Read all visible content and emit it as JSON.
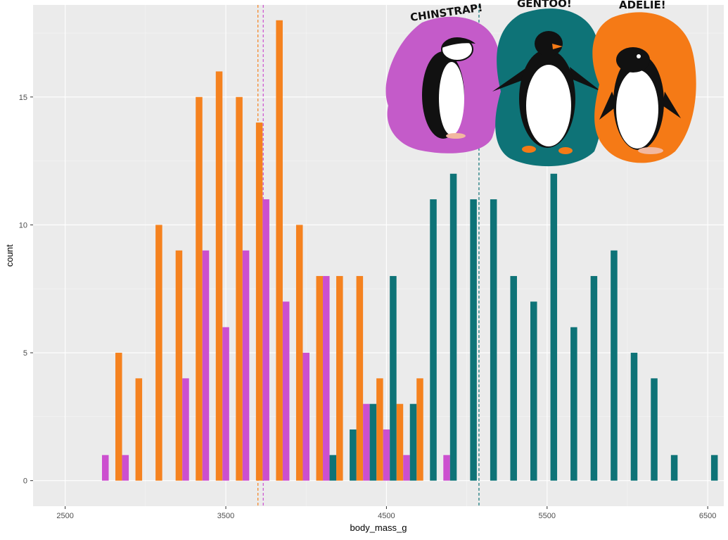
{
  "chart_data": {
    "type": "bar",
    "xlabel": "body_mass_g",
    "ylabel": "count",
    "xlim": [
      2500,
      6500
    ],
    "ylim": [
      -1.0,
      18.6
    ],
    "x_ticks": [
      2500,
      3500,
      4500,
      5500,
      6500
    ],
    "y_ticks": [
      0,
      5,
      10,
      15
    ],
    "grid": true,
    "legend": "none",
    "bin_width": 125,
    "series": [
      {
        "color": "#F5821F",
        "bins": [
          {
            "x": 2875,
            "count": 5
          },
          {
            "x": 3000,
            "count": 4
          },
          {
            "x": 3125,
            "count": 10
          },
          {
            "x": 3250,
            "count": 9
          },
          {
            "x": 3375,
            "count": 15
          },
          {
            "x": 3500,
            "count": 16
          },
          {
            "x": 3625,
            "count": 15
          },
          {
            "x": 3750,
            "count": 14
          },
          {
            "x": 3875,
            "count": 18
          },
          {
            "x": 4000,
            "count": 10
          },
          {
            "x": 4125,
            "count": 8
          },
          {
            "x": 4250,
            "count": 8
          },
          {
            "x": 4375,
            "count": 8
          },
          {
            "x": 4500,
            "count": 4
          },
          {
            "x": 4625,
            "count": 3
          },
          {
            "x": 4750,
            "count": 4
          }
        ],
        "mean": 3700
      },
      {
        "color": "#CC4FCF",
        "bins": [
          {
            "x": 2750,
            "count": 1
          },
          {
            "x": 2875,
            "count": 1
          },
          {
            "x": 3250,
            "count": 4
          },
          {
            "x": 3375,
            "count": 9
          },
          {
            "x": 3500,
            "count": 6
          },
          {
            "x": 3625,
            "count": 9
          },
          {
            "x": 3750,
            "count": 11
          },
          {
            "x": 3875,
            "count": 7
          },
          {
            "x": 4000,
            "count": 5
          },
          {
            "x": 4125,
            "count": 8
          },
          {
            "x": 4375,
            "count": 3
          },
          {
            "x": 4500,
            "count": 2
          },
          {
            "x": 4625,
            "count": 1
          },
          {
            "x": 4875,
            "count": 1
          }
        ],
        "mean": 3733
      },
      {
        "color": "#0E7377",
        "bins": [
          {
            "x": 4125,
            "count": 1
          },
          {
            "x": 4250,
            "count": 2
          },
          {
            "x": 4375,
            "count": 3
          },
          {
            "x": 4500,
            "count": 8
          },
          {
            "x": 4625,
            "count": 3
          },
          {
            "x": 4750,
            "count": 11
          },
          {
            "x": 4875,
            "count": 12
          },
          {
            "x": 5000,
            "count": 11
          },
          {
            "x": 5125,
            "count": 11
          },
          {
            "x": 5250,
            "count": 8
          },
          {
            "x": 5375,
            "count": 7
          },
          {
            "x": 5500,
            "count": 12
          },
          {
            "x": 5625,
            "count": 6
          },
          {
            "x": 5750,
            "count": 8
          },
          {
            "x": 5875,
            "count": 9
          },
          {
            "x": 6000,
            "count": 5
          },
          {
            "x": 6125,
            "count": 4
          },
          {
            "x": 6250,
            "count": 1
          },
          {
            "x": 6500,
            "count": 1
          }
        ],
        "mean": 5076
      }
    ]
  },
  "artwork": {
    "labels": [
      "CHINSTRAP!",
      "GENTOO!",
      "ADELIE!"
    ],
    "colors": [
      "#C45BC9",
      "#0E7377",
      "#F57A16"
    ]
  }
}
